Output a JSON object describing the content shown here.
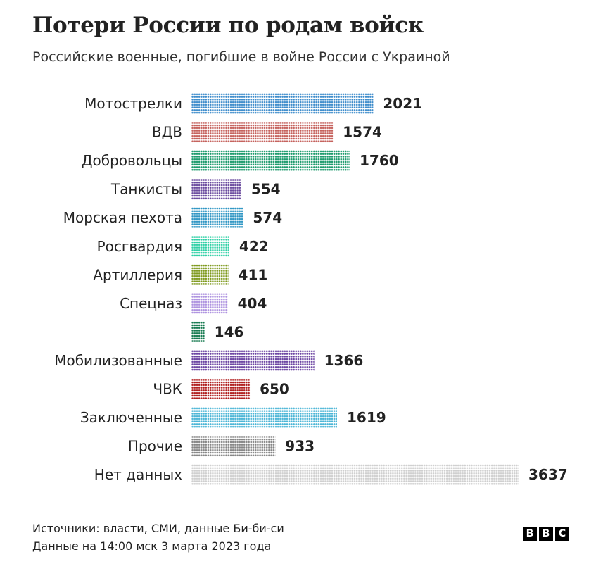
{
  "title": "Потери России по родам войск",
  "subtitle": "Российские военные, погибшие в войне России с Украиной",
  "chart_data": {
    "type": "bar",
    "orientation": "horizontal",
    "style": "pictogram dots",
    "categories": [
      "Мотострелки",
      "ВДВ",
      "Добровольцы",
      "Танкисты",
      "Морская пехота",
      "Росгвардия",
      "Артиллерия",
      "Спецназ",
      "",
      "Мобилизованные",
      "ЧВК",
      "Заключенные",
      "Прочие",
      "Нет данных"
    ],
    "values": [
      2021,
      1574,
      1760,
      554,
      574,
      422,
      411,
      404,
      146,
      1366,
      650,
      1619,
      933,
      3637
    ],
    "colors": [
      "#3d8ccb",
      "#c5615c",
      "#1b9a6c",
      "#6a4a9e",
      "#2f96c4",
      "#2fd0a6",
      "#7f9a1e",
      "#ae93e0",
      "#167a50",
      "#6b44a2",
      "#b01d1d",
      "#4ab5d6",
      "#858585",
      "#cfcfcf"
    ],
    "data_labels": true,
    "grid": false
  },
  "footer": {
    "source": "Источники: власти, СМИ, данные Би-би-си",
    "date": "Данные на 14:00 мск 3 марта 2023 года",
    "logo": [
      "B",
      "B",
      "C"
    ]
  }
}
